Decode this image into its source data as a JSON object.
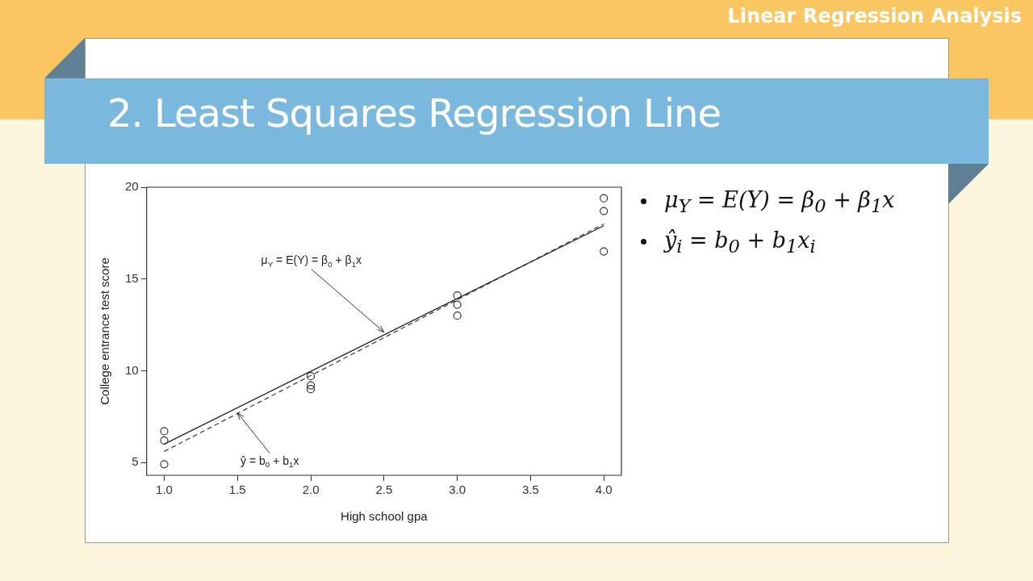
{
  "chart_data": {
    "type": "scatter",
    "title": "2. Least Squares Regression Line",
    "subtitle": "Linear Regression Analysis",
    "xlabel": "High school gpa",
    "ylabel": "College entrance test score",
    "xlim": [
      0.88,
      4.12
    ],
    "ylim": [
      4.3,
      20
    ],
    "xticks": [
      {
        "value": 1,
        "label": "1.0"
      },
      {
        "value": 1.5,
        "label": "1.5"
      },
      {
        "value": 2,
        "label": "2.0"
      },
      {
        "value": 2.5,
        "label": "2.5"
      },
      {
        "value": 3,
        "label": "3.0"
      },
      {
        "value": 3.5,
        "label": "3.5"
      },
      {
        "value": 4,
        "label": "4.0"
      }
    ],
    "yticks": [
      5,
      10,
      15,
      20
    ],
    "grid": false,
    "legend": false,
    "series": [
      {
        "color": "#333333",
        "marker": "circle",
        "x": [
          1,
          1,
          1,
          2,
          2,
          2,
          3,
          3,
          3,
          4,
          4,
          4
        ],
        "values": [
          6.7,
          6.2,
          4.9,
          9.7,
          9.2,
          9.0,
          14.1,
          13.6,
          13.0,
          19.4,
          18.7,
          16.5
        ]
      },
      {
        "type": "line",
        "color": "#222222",
        "line_style": "solid",
        "x": [
          1,
          4
        ],
        "values": [
          6.0,
          17.9
        ]
      },
      {
        "type": "line",
        "color": "#444444",
        "line_style": "dashed",
        "x": [
          1,
          4
        ],
        "values": [
          5.6,
          18.0
        ]
      }
    ],
    "annotations": [
      {
        "text": "μ$_{Y}$ = E(Y) = β$_{0}$ + β$_{1}$x",
        "x": 2.5,
        "y": 12.1
      },
      {
        "text": "ŷ = b$_{0}$ + b$_{1}$x",
        "x": 1.5,
        "y": 7.7
      },
      "μ$_{Y}$ = E(Y) = β$_{0}$ + β$_{1}$x",
      "ŷ$_{i}$ = b$_{0}$ + b$_{1}$x$_{i}$"
    ]
  }
}
